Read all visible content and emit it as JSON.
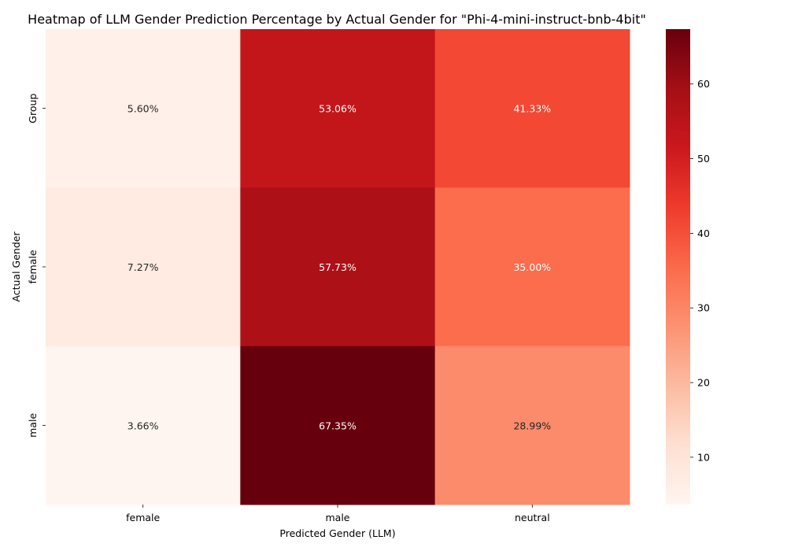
{
  "chart_data": {
    "type": "heatmap",
    "title": "Heatmap of LLM Gender Prediction Percentage by Actual Gender for \"Phi-4-mini-instruct-bnb-4bit\"",
    "xlabel": "Predicted Gender (LLM)",
    "ylabel": "Actual Gender",
    "x_categories": [
      "female",
      "male",
      "neutral"
    ],
    "y_categories": [
      "Group",
      "female",
      "male"
    ],
    "values": [
      [
        5.6,
        53.06,
        41.33
      ],
      [
        7.27,
        57.73,
        35.0
      ],
      [
        3.66,
        67.35,
        28.99
      ]
    ],
    "value_labels": [
      [
        "5.60%",
        "53.06%",
        "41.33%"
      ],
      [
        "7.27%",
        "57.73%",
        "35.00%"
      ],
      [
        "3.66%",
        "67.35%",
        "28.99%"
      ]
    ],
    "colormap": "Reds",
    "colorbar": {
      "range": [
        3.66,
        67.35
      ],
      "ticks": [
        10,
        20,
        30,
        40,
        50,
        60
      ],
      "tick_labels": [
        "10",
        "20",
        "30",
        "40",
        "50",
        "60"
      ]
    }
  }
}
